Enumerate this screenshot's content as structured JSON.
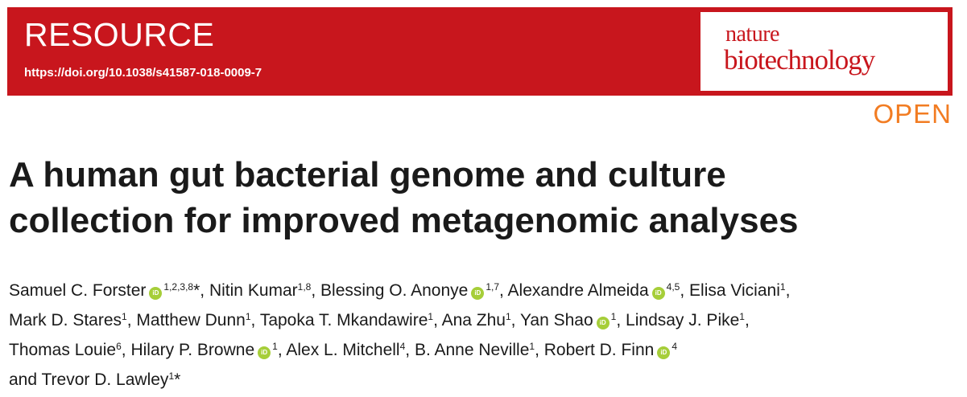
{
  "banner": {
    "label": "RESOURCE",
    "doi": "https://doi.org/10.1038/s41587-018-0009-7",
    "journal_line1": "nature",
    "journal_line2": "biotechnology",
    "open_label": "OPEN"
  },
  "colors": {
    "banner_red": "#c8161d",
    "open_orange": "#f27c22",
    "orcid_green": "#a6ce39"
  },
  "title": {
    "line1": "A human gut bacterial genome and culture",
    "line2": "collection for improved metagenomic analyses"
  },
  "orcid_icon_text": "iD",
  "authors": [
    {
      "name": "Samuel C. Forster",
      "orcid": true,
      "affil": "1,2,3,8",
      "mark": "*",
      "sep": ",",
      "br": false
    },
    {
      "name": "Nitin Kumar",
      "orcid": false,
      "affil": "1,8",
      "mark": "",
      "sep": ",",
      "br": false
    },
    {
      "name": "Blessing O. Anonye",
      "orcid": true,
      "affil": "1,7",
      "mark": "",
      "sep": ",",
      "br": false
    },
    {
      "name": "Alexandre Almeida",
      "orcid": true,
      "affil": "4,5",
      "mark": "",
      "sep": ",",
      "br": false
    },
    {
      "name": "Elisa Viciani",
      "orcid": false,
      "affil": "1",
      "mark": "",
      "sep": ",",
      "br": true
    },
    {
      "name": "Mark D. Stares",
      "orcid": false,
      "affil": "1",
      "mark": "",
      "sep": ",",
      "br": false
    },
    {
      "name": "Matthew Dunn",
      "orcid": false,
      "affil": "1",
      "mark": "",
      "sep": ",",
      "br": false
    },
    {
      "name": "Tapoka T. Mkandawire",
      "orcid": false,
      "affil": "1",
      "mark": "",
      "sep": ",",
      "br": false
    },
    {
      "name": "Ana Zhu",
      "orcid": false,
      "affil": "1",
      "mark": "",
      "sep": ",",
      "br": false
    },
    {
      "name": "Yan Shao",
      "orcid": true,
      "affil": "1",
      "mark": "",
      "sep": ",",
      "br": false
    },
    {
      "name": "Lindsay J. Pike",
      "orcid": false,
      "affil": "1",
      "mark": "",
      "sep": ",",
      "br": true
    },
    {
      "name": "Thomas Louie",
      "orcid": false,
      "affil": "6",
      "mark": "",
      "sep": ",",
      "br": false
    },
    {
      "name": "Hilary P. Browne",
      "orcid": true,
      "affil": "1",
      "mark": "",
      "sep": ",",
      "br": false
    },
    {
      "name": "Alex L. Mitchell",
      "orcid": false,
      "affil": "4",
      "mark": "",
      "sep": ",",
      "br": false
    },
    {
      "name": "B. Anne Neville",
      "orcid": false,
      "affil": "1",
      "mark": "",
      "sep": ",",
      "br": false
    },
    {
      "name": "Robert D. Finn",
      "orcid": true,
      "affil": "4",
      "mark": "",
      "sep": "",
      "br": true
    },
    {
      "name": "and Trevor D. Lawley",
      "orcid": false,
      "affil": "1",
      "mark": "*",
      "sep": "",
      "br": false
    }
  ]
}
